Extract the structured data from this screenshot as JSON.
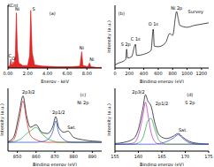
{
  "chart_data": [
    {
      "type": "area",
      "x_label": "Energy - keV",
      "x": [
        0,
        0.2,
        0.28,
        0.35,
        0.45,
        0.52,
        0.6,
        0.75,
        0.85,
        0.95,
        1.1,
        1.5,
        2.0,
        2.2,
        2.31,
        2.45,
        2.7,
        3.5,
        5,
        6.5,
        7.3,
        7.47,
        7.6,
        8.1,
        8.26,
        8.4,
        9,
        9.5
      ],
      "series": [
        {
          "color": "#e01010",
          "values": [
            2,
            4,
            14,
            6,
            5,
            10,
            6,
            20,
            88,
            30,
            8,
            4,
            4,
            20,
            92,
            25,
            5,
            3,
            2,
            2,
            3,
            26,
            4,
            2,
            8,
            2,
            1,
            1
          ]
        }
      ],
      "xlim": [
        0,
        9.5
      ],
      "xticks": [
        {
          "value": 0,
          "label": "0.00"
        },
        {
          "value": 2,
          "label": "2.00"
        },
        {
          "value": 4,
          "label": "4.00"
        },
        {
          "value": 6,
          "label": "6.00"
        },
        {
          "value": 8,
          "label": "8.00"
        }
      ],
      "ylim": [
        0,
        100
      ],
      "tick_labels": "x",
      "annotations": [
        {
          "text": "KCnt",
          "x": 0.5,
          "y": 100
        },
        {
          "text": "(a)",
          "x": 4.5,
          "y": 88
        },
        {
          "text": "C",
          "x": 0.2,
          "y": 20
        },
        {
          "text": "O",
          "x": 0.55,
          "y": 16
        },
        {
          "text": "Ni",
          "x": 0.95,
          "y": 94
        },
        {
          "text": "S",
          "x": 2.6,
          "y": 94
        },
        {
          "text": "Ni",
          "x": 7.47,
          "y": 32
        },
        {
          "text": "Ni",
          "x": 8.5,
          "y": 14
        }
      ]
    },
    {
      "type": "line",
      "x_label": "Binding energy (eV)",
      "y_label": "Intensity (a.u.)",
      "x": [
        0,
        50,
        100,
        150,
        162,
        175,
        230,
        285,
        300,
        400,
        500,
        531,
        545,
        600,
        700,
        760,
        800,
        855,
        875,
        900,
        1000,
        1100,
        1200,
        1300
      ],
      "series": [
        {
          "color": "#000000",
          "values": [
            5,
            8,
            10,
            14,
            30,
            16,
            18,
            38,
            20,
            22,
            28,
            62,
            35,
            34,
            40,
            55,
            52,
            90,
            80,
            68,
            65,
            68,
            70,
            72
          ]
        }
      ],
      "xlim": [
        0,
        1300
      ],
      "xticks": [
        0,
        200,
        400,
        600,
        800,
        1000,
        1200
      ],
      "ylim": [
        0,
        100
      ],
      "tick_labels": "x",
      "annotations": [
        {
          "text": "(b)",
          "x": 90,
          "y": 88
        },
        {
          "text": "Survey",
          "x": 1120,
          "y": 90
        },
        {
          "text": "Ni 2p",
          "x": 855,
          "y": 96
        },
        {
          "text": "O 1s",
          "x": 531,
          "y": 70
        },
        {
          "text": "C 1s",
          "x": 285,
          "y": 46
        },
        {
          "text": "S 2p",
          "x": 150,
          "y": 38
        }
      ]
    },
    {
      "type": "line",
      "x_label": "Binding energy (eV)",
      "y_label": "Intensity (a.u.)",
      "x": [
        845,
        848,
        851,
        853,
        855,
        857,
        860,
        863,
        866,
        869,
        870.5,
        872,
        875,
        877,
        880,
        885,
        890,
        895
      ],
      "series": [
        {
          "color": "#000000",
          "values": [
            15,
            22,
            60,
            88,
            55,
            38,
            42,
            30,
            28,
            40,
            55,
            38,
            30,
            32,
            22,
            18,
            16,
            15
          ]
        },
        {
          "color": "#d02020",
          "values": [
            14,
            18,
            50,
            80,
            48,
            25,
            18,
            15,
            14,
            14,
            14,
            14,
            14,
            14,
            14,
            14,
            14,
            14
          ]
        },
        {
          "color": "#20a040",
          "values": [
            14,
            15,
            18,
            22,
            28,
            32,
            38,
            28,
            20,
            16,
            15,
            14,
            14,
            14,
            14,
            14,
            14,
            14
          ]
        },
        {
          "color": "#2040d0",
          "values": [
            14,
            14,
            14,
            14,
            14,
            14,
            14,
            15,
            18,
            32,
            48,
            30,
            18,
            15,
            14,
            14,
            14,
            14
          ]
        }
      ],
      "xlim": [
        845,
        895
      ],
      "xticks": [
        850,
        860,
        870,
        880,
        890
      ],
      "ylim": [
        0,
        100
      ],
      "tick_labels": "x",
      "annotations": [
        {
          "text": "(c)",
          "x": 885,
          "y": 90
        },
        {
          "text": "Ni 2p",
          "x": 885,
          "y": 78
        },
        {
          "text": "2p3/2",
          "x": 856,
          "y": 95
        },
        {
          "text": "2p1/2",
          "x": 872,
          "y": 62
        },
        {
          "text": "Sat.",
          "x": 879,
          "y": 38
        }
      ]
    },
    {
      "type": "line",
      "x_label": "Binding energy (eV)",
      "y_label": "Intensity (a.u.)",
      "x": [
        155,
        157,
        159,
        160,
        161,
        161.5,
        162,
        162.7,
        163.5,
        164.5,
        166,
        167.5,
        168.5,
        169.5,
        171,
        173,
        175
      ],
      "series": [
        {
          "color": "#000000",
          "values": [
            12,
            14,
            20,
            35,
            70,
            90,
            80,
            72,
            45,
            25,
            20,
            24,
            28,
            22,
            15,
            12,
            11
          ]
        },
        {
          "color": "#c020c0",
          "values": [
            11,
            11,
            13,
            25,
            58,
            78,
            60,
            30,
            15,
            11,
            11,
            11,
            11,
            11,
            11,
            11,
            11
          ]
        },
        {
          "color": "#20a040",
          "values": [
            11,
            11,
            11,
            13,
            22,
            35,
            48,
            52,
            35,
            16,
            11,
            11,
            11,
            11,
            11,
            11,
            11
          ]
        },
        {
          "color": "#2040d0",
          "values": [
            11,
            11,
            11,
            11,
            11,
            11,
            11,
            11,
            11,
            12,
            15,
            21,
            26,
            20,
            13,
            11,
            11
          ]
        }
      ],
      "xlim": [
        155,
        175
      ],
      "xticks": [
        155,
        160,
        165,
        170,
        175
      ],
      "ylim": [
        0,
        100
      ],
      "tick_labels": "x",
      "annotations": [
        {
          "text": "(d)",
          "x": 171,
          "y": 90
        },
        {
          "text": "S 2p",
          "x": 171,
          "y": 78
        },
        {
          "text": "2p3/2",
          "x": 160,
          "y": 95
        },
        {
          "text": "2p1/2",
          "x": 165,
          "y": 76
        },
        {
          "text": "Sat.",
          "x": 169.5,
          "y": 34
        }
      ]
    }
  ]
}
